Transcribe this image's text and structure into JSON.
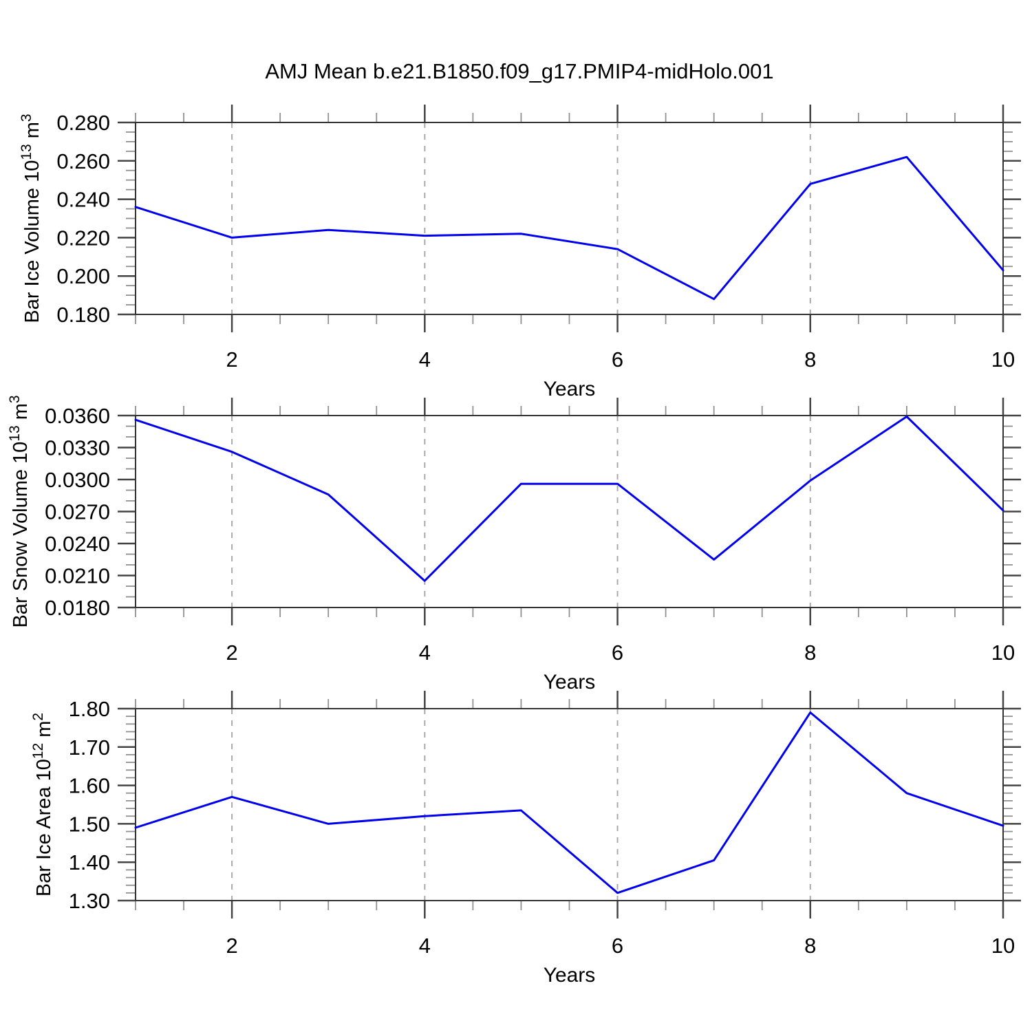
{
  "title": "AMJ Mean b.e21.B1850.f09_g17.PMIP4-midHolo.001",
  "style": {
    "line_color": "#0000ee",
    "line_width": 3,
    "grid_color": "#a9a9a9",
    "frame_color": "#333333",
    "major_tick_color": "#444444",
    "minor_tick_color": "#909090",
    "text_color": "#000000"
  },
  "chart_data": [
    {
      "id": "ice-volume",
      "type": "line",
      "title": "",
      "xlabel": "Years",
      "ylabel": "Bar Ice Volume 10^13 m^3",
      "ylabel_parts": [
        {
          "t": "Bar Ice Volume 10"
        },
        {
          "t": "13",
          "sup": true
        },
        {
          "t": " m"
        },
        {
          "t": "3",
          "sup": true
        }
      ],
      "x": [
        1,
        2,
        3,
        4,
        5,
        6,
        7,
        8,
        9,
        10
      ],
      "values": [
        0.236,
        0.22,
        0.224,
        0.221,
        0.222,
        0.214,
        0.188,
        0.248,
        0.262,
        0.203
      ],
      "xlim": [
        1,
        10
      ],
      "ylim": [
        0.18,
        0.28
      ],
      "xticks": {
        "values": [
          2,
          4,
          6,
          8,
          10
        ],
        "labels": [
          "2",
          "4",
          "6",
          "8",
          "10"
        ]
      },
      "yticks": {
        "values": [
          0.18,
          0.2,
          0.22,
          0.24,
          0.26,
          0.28
        ],
        "labels": [
          "0.180",
          "0.200",
          "0.220",
          "0.240",
          "0.260",
          "0.280"
        ]
      },
      "xminor_step": 0.5,
      "yminor_step": 0.005,
      "grid_x": [
        2,
        4,
        6,
        8
      ],
      "grid_on": true,
      "legend": "none"
    },
    {
      "id": "snow-volume",
      "type": "line",
      "title": "",
      "xlabel": "Years",
      "ylabel": "Bar Snow Volume 10^13 m^3",
      "ylabel_parts": [
        {
          "t": "Bar Snow Volume 10"
        },
        {
          "t": "13",
          "sup": true
        },
        {
          "t": " m"
        },
        {
          "t": "3",
          "sup": true
        }
      ],
      "x": [
        1,
        2,
        3,
        4,
        5,
        6,
        7,
        8,
        9,
        10
      ],
      "values": [
        0.0356,
        0.0326,
        0.0286,
        0.0205,
        0.0296,
        0.0296,
        0.0225,
        0.0299,
        0.0359,
        0.0271
      ],
      "xlim": [
        1,
        10
      ],
      "ylim": [
        0.018,
        0.036
      ],
      "xticks": {
        "values": [
          2,
          4,
          6,
          8,
          10
        ],
        "labels": [
          "2",
          "4",
          "6",
          "8",
          "10"
        ]
      },
      "yticks": {
        "values": [
          0.018,
          0.021,
          0.024,
          0.027,
          0.03,
          0.033,
          0.036
        ],
        "labels": [
          "0.0180",
          "0.0210",
          "0.0240",
          "0.0270",
          "0.0300",
          "0.0330",
          "0.0360"
        ]
      },
      "xminor_step": 0.5,
      "yminor_step": 0.001,
      "grid_x": [
        2,
        4,
        6,
        8
      ],
      "grid_on": true,
      "legend": "none"
    },
    {
      "id": "ice-area",
      "type": "line",
      "title": "",
      "xlabel": "Years",
      "ylabel": "Bar Ice Area 10^12 m^2",
      "ylabel_parts": [
        {
          "t": "Bar Ice Area 10"
        },
        {
          "t": "12",
          "sup": true
        },
        {
          "t": " m"
        },
        {
          "t": "2",
          "sup": true
        }
      ],
      "x": [
        1,
        2,
        3,
        4,
        5,
        6,
        7,
        8,
        9,
        10
      ],
      "values": [
        1.49,
        1.57,
        1.5,
        1.52,
        1.535,
        1.32,
        1.405,
        1.79,
        1.58,
        1.495
      ],
      "xlim": [
        1,
        10
      ],
      "ylim": [
        1.3,
        1.8
      ],
      "xticks": {
        "values": [
          2,
          4,
          6,
          8,
          10
        ],
        "labels": [
          "2",
          "4",
          "6",
          "8",
          "10"
        ]
      },
      "yticks": {
        "values": [
          1.3,
          1.4,
          1.5,
          1.6,
          1.7,
          1.8
        ],
        "labels": [
          "1.30",
          "1.40",
          "1.50",
          "1.60",
          "1.70",
          "1.80"
        ]
      },
      "xminor_step": 0.5,
      "yminor_step": 0.02,
      "grid_x": [
        2,
        4,
        6,
        8
      ],
      "grid_on": true,
      "legend": "none"
    }
  ]
}
